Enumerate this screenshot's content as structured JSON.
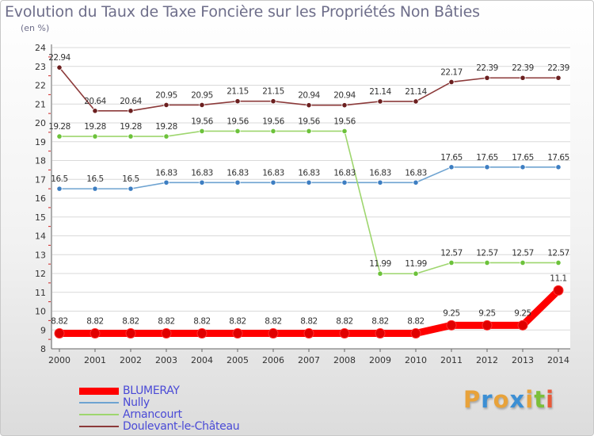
{
  "title": "Evolution du Taux de Taxe Foncière sur les Propriétés Non Bâties",
  "subtitle": "(en %)",
  "logo": {
    "letters": [
      "P",
      "r",
      "o",
      "x",
      "i",
      "t",
      "i"
    ],
    "colors": [
      "#e8a23a",
      "#3c8fd4",
      "#e8a23a",
      "#3c8fd4",
      "#e8a23a",
      "#7bbf3a",
      "#e85a3a"
    ]
  },
  "chart_data": {
    "type": "line",
    "title": "Evolution du Taux de Taxe Foncière sur les Propriétés Non Bâties",
    "ylabel": "(en %)",
    "xlabel": "",
    "x": [
      "2000",
      "2001",
      "2002",
      "2003",
      "2004",
      "2005",
      "2006",
      "2007",
      "2008",
      "2009",
      "2010",
      "2011",
      "2012",
      "2013",
      "2014"
    ],
    "ylim": [
      8,
      24
    ],
    "yticks": [
      8,
      9,
      10,
      11,
      12,
      13,
      14,
      15,
      16,
      17,
      18,
      19,
      20,
      21,
      22,
      23,
      24
    ],
    "grid": "horizontal",
    "legend_position": "bottom-left",
    "series": [
      {
        "name": "BLUMERAY",
        "color": "#ff0000",
        "marker_color": "#e00000",
        "emphasis": true,
        "values": [
          8.82,
          8.82,
          8.82,
          8.82,
          8.82,
          8.82,
          8.82,
          8.82,
          8.82,
          8.82,
          8.82,
          9.25,
          9.25,
          9.25,
          11.1
        ],
        "labels": [
          "8.82",
          "8.82",
          "8.82",
          "8.82",
          "8.82",
          "8.82",
          "8.82",
          "8.82",
          "8.82",
          "8.82",
          "8.82",
          "9.25",
          "9.25",
          "9.25",
          "11.1"
        ]
      },
      {
        "name": "Nully",
        "color": "#6ea3d1",
        "marker_color": "#3d7ec2",
        "emphasis": false,
        "values": [
          16.5,
          16.5,
          16.5,
          16.83,
          16.83,
          16.83,
          16.83,
          16.83,
          16.83,
          16.83,
          16.83,
          17.65,
          17.65,
          17.65,
          17.65
        ],
        "labels": [
          "16.5",
          "16.5",
          "16.5",
          "16.83",
          "16.83",
          "16.83",
          "16.83",
          "16.83",
          "16.83",
          "16.83",
          "16.83",
          "17.65",
          "17.65",
          "17.65",
          "17.65"
        ]
      },
      {
        "name": "Arnancourt",
        "color": "#9ed66e",
        "marker_color": "#6cc23a",
        "emphasis": false,
        "values": [
          19.28,
          19.28,
          19.28,
          19.28,
          19.56,
          19.56,
          19.56,
          19.56,
          19.56,
          11.99,
          11.99,
          12.57,
          12.57,
          12.57,
          12.57
        ],
        "labels": [
          "19.28",
          "19.28",
          "19.28",
          "19.28",
          "19.56",
          "19.56",
          "19.56",
          "19.56",
          "19.56",
          "11.99",
          "11.99",
          "12.57",
          "12.57",
          "12.57",
          "12.57"
        ]
      },
      {
        "name": "Doulevant-le-Château",
        "color": "#8c3a3a",
        "marker_color": "#6b1f1f",
        "emphasis": false,
        "values": [
          22.94,
          20.64,
          20.64,
          20.95,
          20.95,
          21.15,
          21.15,
          20.94,
          20.94,
          21.14,
          21.14,
          22.17,
          22.39,
          22.39,
          22.39
        ],
        "labels": [
          "22.94",
          "20.64",
          "20.64",
          "20.95",
          "20.95",
          "21.15",
          "21.15",
          "20.94",
          "20.94",
          "21.14",
          "21.14",
          "22.17",
          "22.39",
          "22.39",
          "22.39"
        ]
      }
    ]
  }
}
